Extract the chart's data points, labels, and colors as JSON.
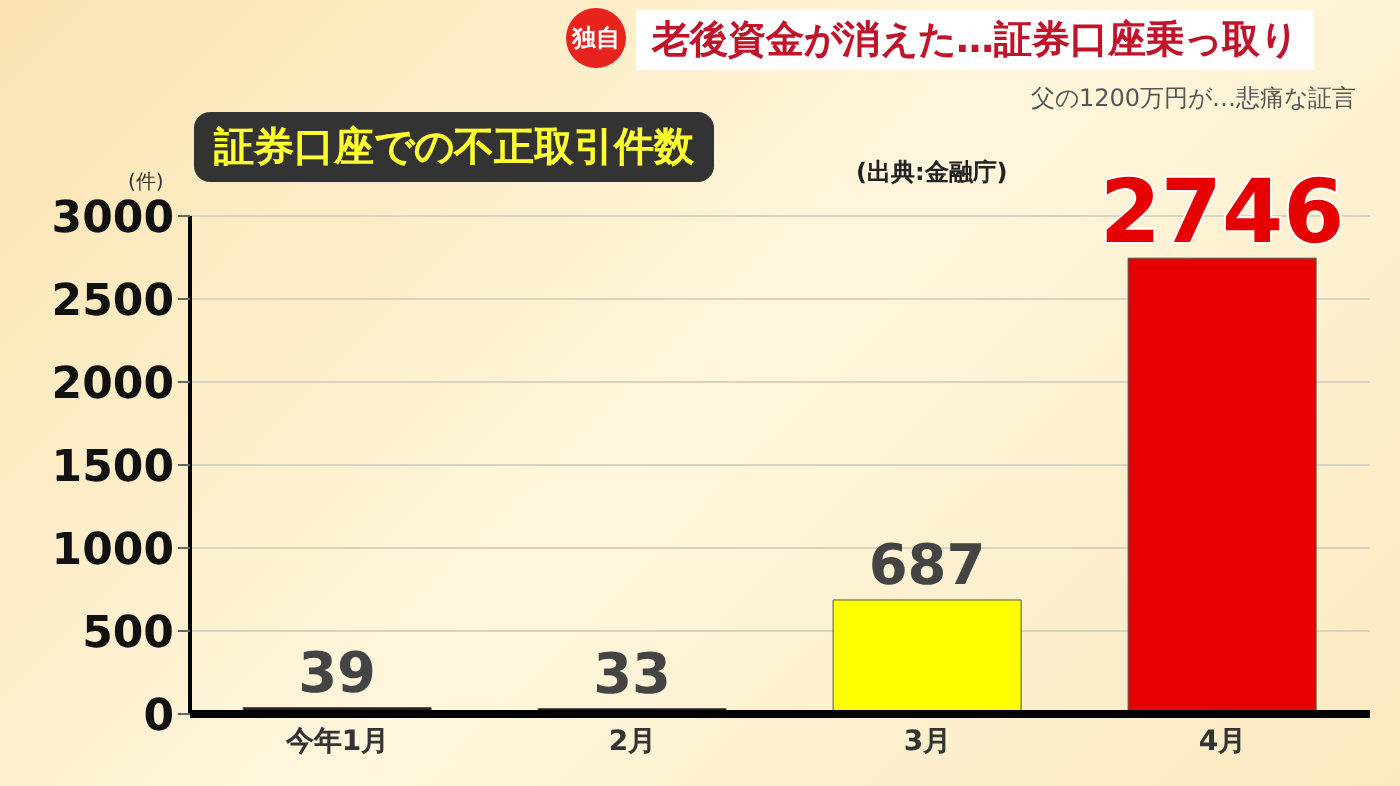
{
  "chart_data": {
    "type": "bar",
    "title": "証券口座での不正取引件数",
    "ylabel": "(件)",
    "annotations": [
      "独自",
      "老後資金が消えた…証券口座乗っ取り",
      "父の1200万円が…悲痛な証言",
      "(出典:金融庁)"
    ],
    "categories": [
      "今年1月",
      "2月",
      "3月",
      "4月"
    ],
    "values": [
      39,
      33,
      687,
      2746
    ],
    "colors": [
      "#222222",
      "#222222",
      "#ffff00",
      "#e60000"
    ],
    "ylim": [
      0,
      3000
    ],
    "yticks": [
      0,
      500,
      1000,
      1500,
      2000,
      2500,
      3000
    ],
    "grid": "y",
    "data_labels": true
  }
}
